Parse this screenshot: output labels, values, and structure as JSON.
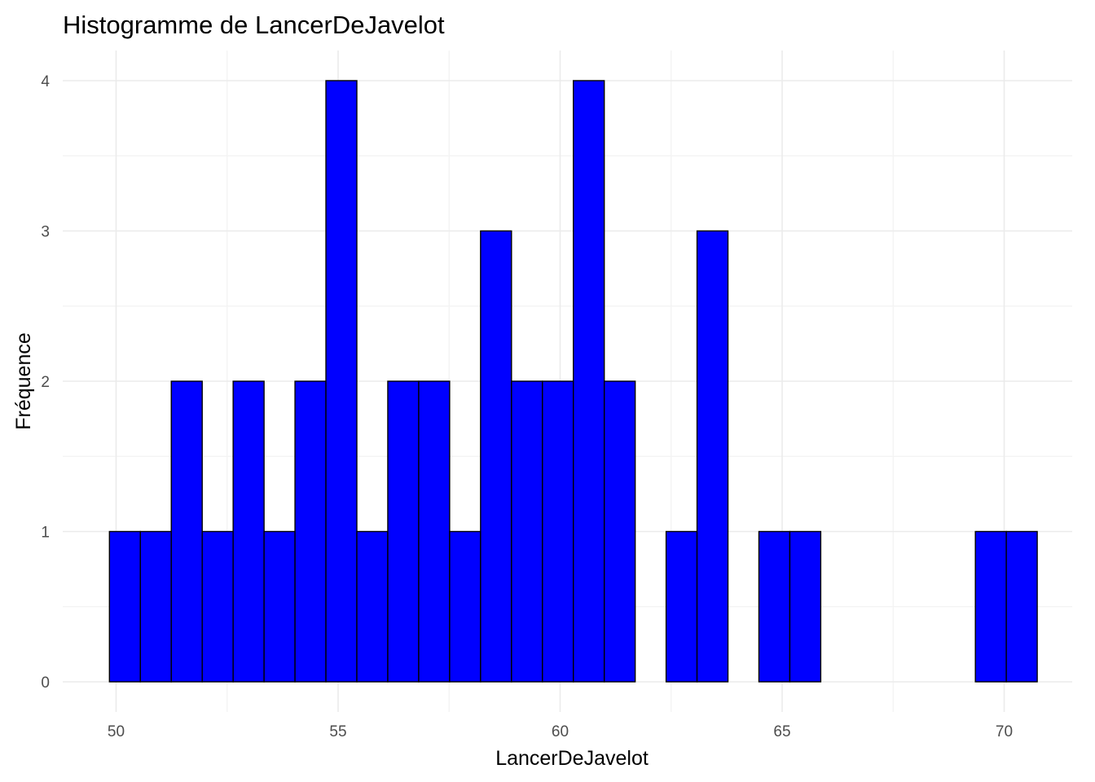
{
  "chart_data": {
    "type": "bar",
    "title": "Histogramme de LancerDeJavelot",
    "xlabel": "LancerDeJavelot",
    "ylabel": "Fréquence",
    "bar_color": "#0000ff",
    "bar_border_color": "#000000",
    "xlim": [
      49.0,
      71.5
    ],
    "ylim": [
      0,
      4.2
    ],
    "x_ticks": [
      50,
      55,
      60,
      65,
      70
    ],
    "x_tick_labels": [
      "50",
      "55",
      "60",
      "65",
      "70"
    ],
    "y_ticks": [
      0,
      1,
      2,
      3,
      4
    ],
    "y_tick_labels": [
      "0",
      "1",
      "2",
      "3",
      "4"
    ],
    "grid": true,
    "bin_start": 49.85,
    "bin_width": 0.6965,
    "bin_count": 30,
    "counts": [
      1,
      1,
      2,
      1,
      2,
      1,
      2,
      4,
      1,
      2,
      2,
      1,
      3,
      2,
      2,
      4,
      2,
      0,
      1,
      3,
      0,
      1,
      1,
      0,
      0,
      0,
      0,
      0,
      1,
      1
    ]
  }
}
